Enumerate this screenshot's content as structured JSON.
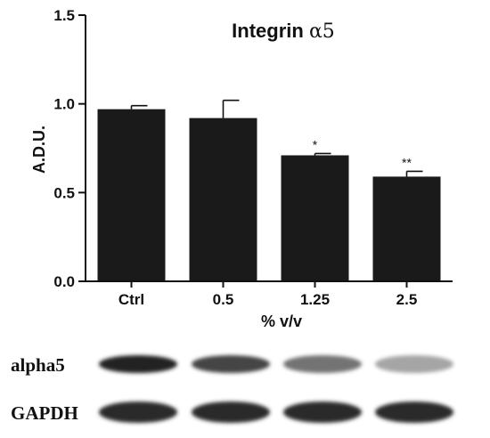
{
  "chart_data": {
    "type": "bar",
    "title": "Integrin α5",
    "title_main": "Integrin ",
    "title_symbol": "α5",
    "xlabel": "% v/v",
    "ylabel": "A.D.U.",
    "ylim": [
      0,
      1.5
    ],
    "yticks": [
      "0.0",
      "0.5",
      "1.0",
      "1.5"
    ],
    "ytick_values": [
      0,
      0.5,
      1.0,
      1.5
    ],
    "categories": [
      "Ctrl",
      "0.5",
      "1.25",
      "2.5"
    ],
    "values": [
      0.97,
      0.92,
      0.71,
      0.59
    ],
    "errors": [
      0.02,
      0.1,
      0.01,
      0.03
    ],
    "significance": [
      "",
      "",
      "*",
      "**"
    ],
    "bar_color": "#1a1a1a",
    "grid": false
  },
  "blot": {
    "rows": [
      {
        "label": "alpha5",
        "intensity": [
          0.95,
          0.78,
          0.55,
          0.3
        ]
      },
      {
        "label": "GAPDH",
        "intensity": [
          0.92,
          0.92,
          0.92,
          0.92
        ]
      }
    ]
  }
}
